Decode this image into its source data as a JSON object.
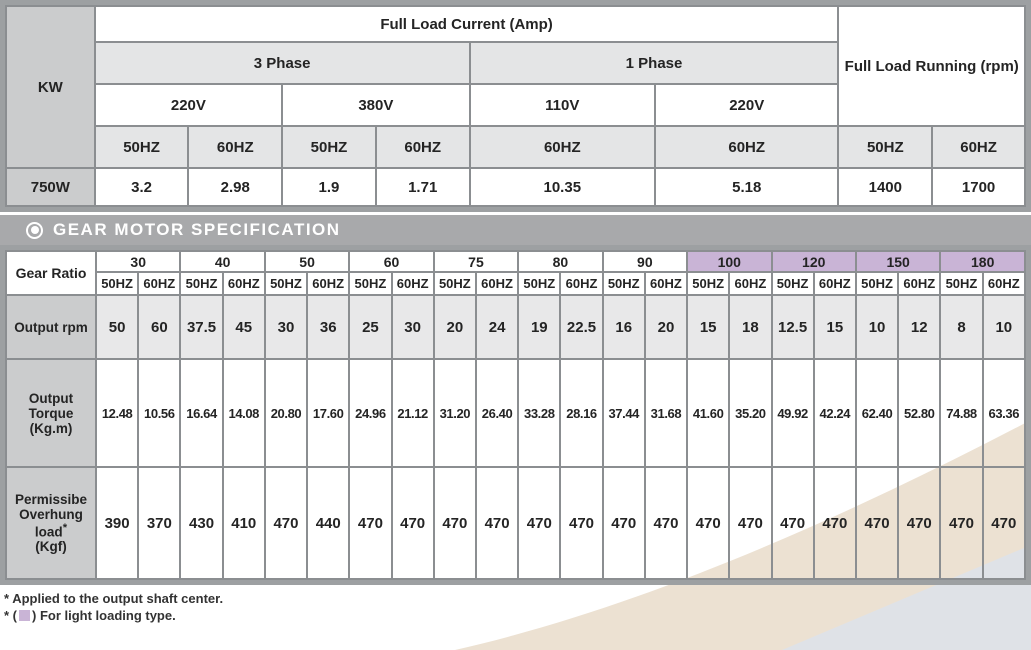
{
  "colors": {
    "frame_gray": "#9da0a2",
    "grid_gray": "#8b8e91",
    "label_cell_gray": "#cbcccd",
    "subheader_gray": "#e4e5e6",
    "banner_gray": "#a8a9ab",
    "light_purple": "#c9b4d6",
    "rpm_row_gray": "#e8e8e9",
    "swoosh_beige": "#ece1d2",
    "swoosh_blue_gray": "#dfe2e7"
  },
  "current_table": {
    "kw_label": "KW",
    "title": "Full Load Current (Amp)",
    "running_title": "Full Load Running (rpm)",
    "phase_3": "3 Phase",
    "phase_1": "1 Phase",
    "voltages_3phase": [
      "220V",
      "380V"
    ],
    "voltages_1phase": [
      "110V",
      "220V"
    ],
    "hz_headers": [
      "50HZ",
      "60HZ",
      "50HZ",
      "60HZ",
      "60HZ",
      "60HZ",
      "50HZ",
      "60HZ"
    ],
    "data_row": {
      "kw": "750W",
      "values": [
        "3.2",
        "2.98",
        "1.9",
        "1.71",
        "10.35",
        "5.18",
        "1400",
        "1700"
      ]
    }
  },
  "section_banner": {
    "title": "GEAR MOTOR SPECIFICATION"
  },
  "gear_table": {
    "ratio_label": "Gear Ratio",
    "hz_labels": [
      "50HZ",
      "60HZ"
    ],
    "ratios": [
      {
        "value": "30",
        "light": false
      },
      {
        "value": "40",
        "light": false
      },
      {
        "value": "50",
        "light": false
      },
      {
        "value": "60",
        "light": false
      },
      {
        "value": "75",
        "light": false
      },
      {
        "value": "80",
        "light": false
      },
      {
        "value": "90",
        "light": false
      },
      {
        "value": "100",
        "light": true
      },
      {
        "value": "120",
        "light": true
      },
      {
        "value": "150",
        "light": true
      },
      {
        "value": "180",
        "light": true
      }
    ],
    "rows": [
      {
        "key": "rpm",
        "label": "Output rpm",
        "values": [
          "50",
          "60",
          "37.5",
          "45",
          "30",
          "36",
          "25",
          "30",
          "20",
          "24",
          "19",
          "22.5",
          "16",
          "20",
          "15",
          "18",
          "12.5",
          "15",
          "10",
          "12",
          "8",
          "10"
        ]
      },
      {
        "key": "torque",
        "label": "Output Torque",
        "unit": "(Kg.m)",
        "values": [
          "12.48",
          "10.56",
          "16.64",
          "14.08",
          "20.80",
          "17.60",
          "24.96",
          "21.12",
          "31.20",
          "26.40",
          "33.28",
          "28.16",
          "37.44",
          "31.68",
          "41.60",
          "35.20",
          "49.92",
          "42.24",
          "62.40",
          "52.80",
          "74.88",
          "63.36"
        ]
      },
      {
        "key": "load",
        "label": "Permissibe Overhung load",
        "sup": "*",
        "unit": "(Kgf)",
        "values": [
          "390",
          "370",
          "430",
          "410",
          "470",
          "440",
          "470",
          "470",
          "470",
          "470",
          "470",
          "470",
          "470",
          "470",
          "470",
          "470",
          "470",
          "470",
          "470",
          "470",
          "470",
          "470"
        ]
      }
    ]
  },
  "footnotes": {
    "line1": "* Applied to the output shaft center.",
    "line2_prefix": "* (",
    "line2_suffix": ") For light loading type."
  }
}
